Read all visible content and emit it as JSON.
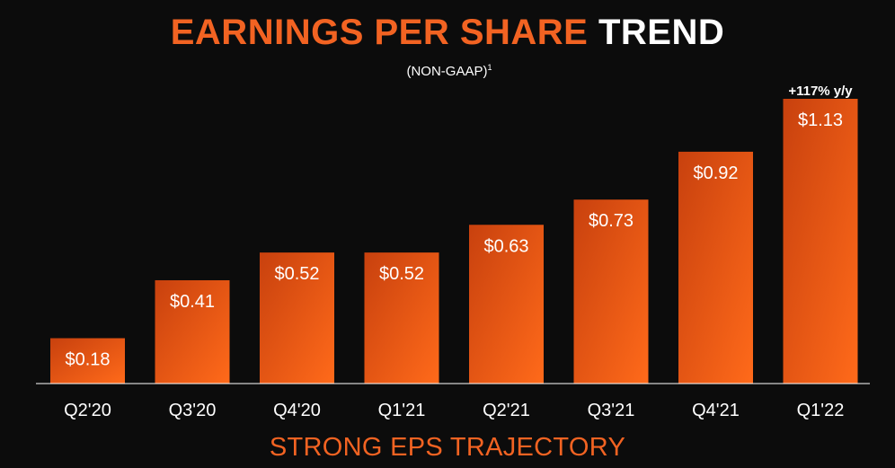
{
  "header": {
    "title_accent": "EARNINGS PER SHARE",
    "title_plain": "TREND",
    "subtitle": "(NON-GAAP)",
    "subtitle_footnote": "1"
  },
  "footer": {
    "tagline": "STRONG EPS TRAJECTORY"
  },
  "colors": {
    "accent": "#f26322",
    "bar_top": "#c8410e",
    "bar_bottom": "#ff6a1a",
    "background": "#0c0c0c"
  },
  "chart_data": {
    "type": "bar",
    "title": "EARNINGS PER SHARE TREND",
    "subtitle": "(NON-GAAP)1",
    "categories": [
      "Q2'20",
      "Q3'20",
      "Q4'20",
      "Q1'21",
      "Q2'21",
      "Q3'21",
      "Q4'21",
      "Q1'22"
    ],
    "values": [
      0.18,
      0.41,
      0.52,
      0.52,
      0.63,
      0.73,
      0.92,
      1.13
    ],
    "labels": [
      "$0.18",
      "$0.41",
      "$0.52",
      "$0.52",
      "$0.63",
      "$0.73",
      "$0.92",
      "$1.13"
    ],
    "annotation": {
      "category": "Q1'22",
      "text": "+117% y/y"
    },
    "ylim": [
      0,
      1.13
    ],
    "grid": false,
    "xlabel": "",
    "ylabel": ""
  }
}
